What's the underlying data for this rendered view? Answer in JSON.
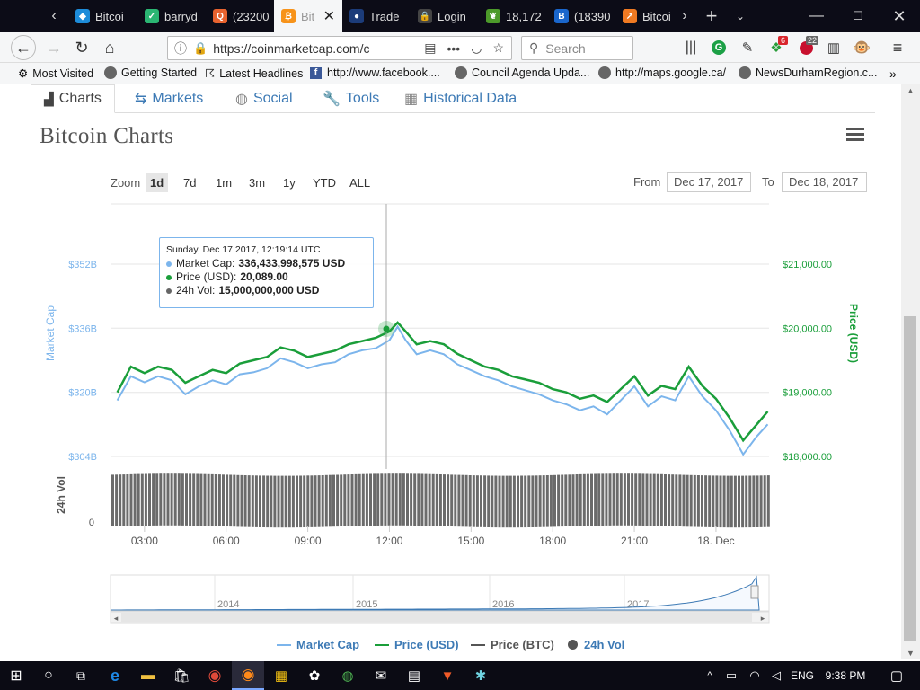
{
  "browser": {
    "tabs": [
      {
        "label": "Bitcoi",
        "color": "#1d8cd9",
        "glyph": "◆"
      },
      {
        "label": "barryd",
        "color": "#2bb673",
        "glyph": "✓"
      },
      {
        "label": "(23200",
        "color": "#e8632f",
        "glyph": "Q"
      },
      {
        "label": "Bit",
        "color": "#f7931a",
        "glyph": "₿",
        "active": true
      },
      {
        "label": "Trade",
        "color": "#1c3c7a",
        "glyph": "●"
      },
      {
        "label": "Login",
        "color": "#444",
        "glyph": "🔒"
      },
      {
        "label": "18,172",
        "color": "#4c9a2a",
        "glyph": "❦"
      },
      {
        "label": "(18390",
        "color": "#1a66cc",
        "glyph": "B"
      },
      {
        "label": "Bitcoi",
        "color": "#f07a22",
        "glyph": "↗"
      }
    ],
    "url": "https://coinmarketcap.com/c",
    "search_placeholder": "Search",
    "badge_red": "6",
    "badge_gray": "22"
  },
  "bookmarks": [
    {
      "label": "Most Visited"
    },
    {
      "label": "Getting Started"
    },
    {
      "label": "Latest Headlines"
    },
    {
      "label": "http://www.facebook...."
    },
    {
      "label": "Council Agenda Upda..."
    },
    {
      "label": "http://maps.google.ca/"
    },
    {
      "label": "NewsDurhamRegion.c..."
    }
  ],
  "subtabs": [
    "Charts",
    "Markets",
    "Social",
    "Tools",
    "Historical Data"
  ],
  "page_title": "Bitcoin Charts",
  "zoom": {
    "label": "Zoom",
    "options": [
      "1d",
      "7d",
      "1m",
      "3m",
      "1y",
      "YTD",
      "ALL"
    ],
    "selected": "1d"
  },
  "range": {
    "from_label": "From",
    "from": "Dec 17, 2017",
    "to_label": "To",
    "to": "Dec 18, 2017"
  },
  "tooltip": {
    "date": "Sunday, Dec 17 2017, 12:19:14 UTC",
    "mcap_label": "Market Cap:",
    "mcap": "336,433,998,575 USD",
    "price_label": "Price (USD):",
    "price": "20,089.00",
    "vol_label": "24h Vol:",
    "vol": "15,000,000,000 USD"
  },
  "legend": [
    "Market Cap",
    "Price (USD)",
    "Price (BTC)",
    "24h Vol"
  ],
  "taskbar": {
    "lang": "ENG",
    "time": "9:38 PM"
  },
  "colors": {
    "mcap": "#7cb5ec",
    "price": "#1a9e3a",
    "btc": "#555555",
    "vol": "#666666",
    "accent": "#3d7ab5"
  },
  "chart_data": {
    "type": "line",
    "title": "Bitcoin Charts",
    "x_ticks": [
      "03:00",
      "06:00",
      "09:00",
      "12:00",
      "15:00",
      "18:00",
      "21:00",
      "18. Dec"
    ],
    "y_left_label": "Market Cap",
    "y_left_ticks": [
      "$352B",
      "$336B",
      "$320B",
      "$304B"
    ],
    "y_right_label": "Price (USD)",
    "y_right_ticks": [
      "$21,000.00",
      "$20,000.00",
      "$19,000.00",
      "$18,000.00"
    ],
    "y_right_range": [
      18000,
      21000
    ],
    "vol_axis_label": "24h Vol",
    "vol_zero": "0",
    "x_hours": [
      2,
      2.5,
      3,
      3.5,
      4,
      4.5,
      5,
      5.5,
      6,
      6.5,
      7,
      7.5,
      8,
      8.5,
      9,
      9.5,
      10,
      10.5,
      11,
      11.5,
      12,
      12.3,
      12.6,
      13,
      13.5,
      14,
      14.5,
      15,
      15.5,
      16,
      16.5,
      17,
      17.5,
      18,
      18.5,
      19,
      19.5,
      20,
      20.5,
      21,
      21.5,
      22,
      22.5,
      23,
      23.5,
      24,
      24.5,
      25,
      25.5,
      25.9
    ],
    "series": [
      {
        "name": "Price (USD)",
        "values": [
          19000,
          19400,
          19300,
          19400,
          19350,
          19150,
          19250,
          19350,
          19300,
          19450,
          19500,
          19550,
          19700,
          19650,
          19550,
          19600,
          19650,
          19750,
          19800,
          19850,
          19950,
          20089,
          19950,
          19750,
          19800,
          19750,
          19600,
          19500,
          19400,
          19350,
          19250,
          19200,
          19150,
          19050,
          19000,
          18900,
          18950,
          18850,
          19050,
          19250,
          18950,
          19100,
          19050,
          19400,
          19100,
          18900,
          18600,
          18250,
          18500,
          18700
        ]
      },
      {
        "name": "Market Cap",
        "values": [
          318,
          324,
          322.5,
          324,
          323,
          319.5,
          321.5,
          323,
          322,
          324.5,
          325,
          326,
          328.5,
          327.5,
          326,
          327,
          327.5,
          329.5,
          330.5,
          331,
          333,
          336.4,
          333,
          329.5,
          330.5,
          329.5,
          327,
          325.5,
          324,
          323,
          321.5,
          320.5,
          319.5,
          318,
          317,
          315.5,
          316.5,
          314.5,
          318,
          321.5,
          316.5,
          319,
          318,
          324,
          319,
          315.5,
          310.5,
          304.5,
          309,
          312
        ]
      }
    ],
    "volume_level": 0.9,
    "navigator_years": [
      "2014",
      "2015",
      "2016",
      "2017"
    ]
  }
}
